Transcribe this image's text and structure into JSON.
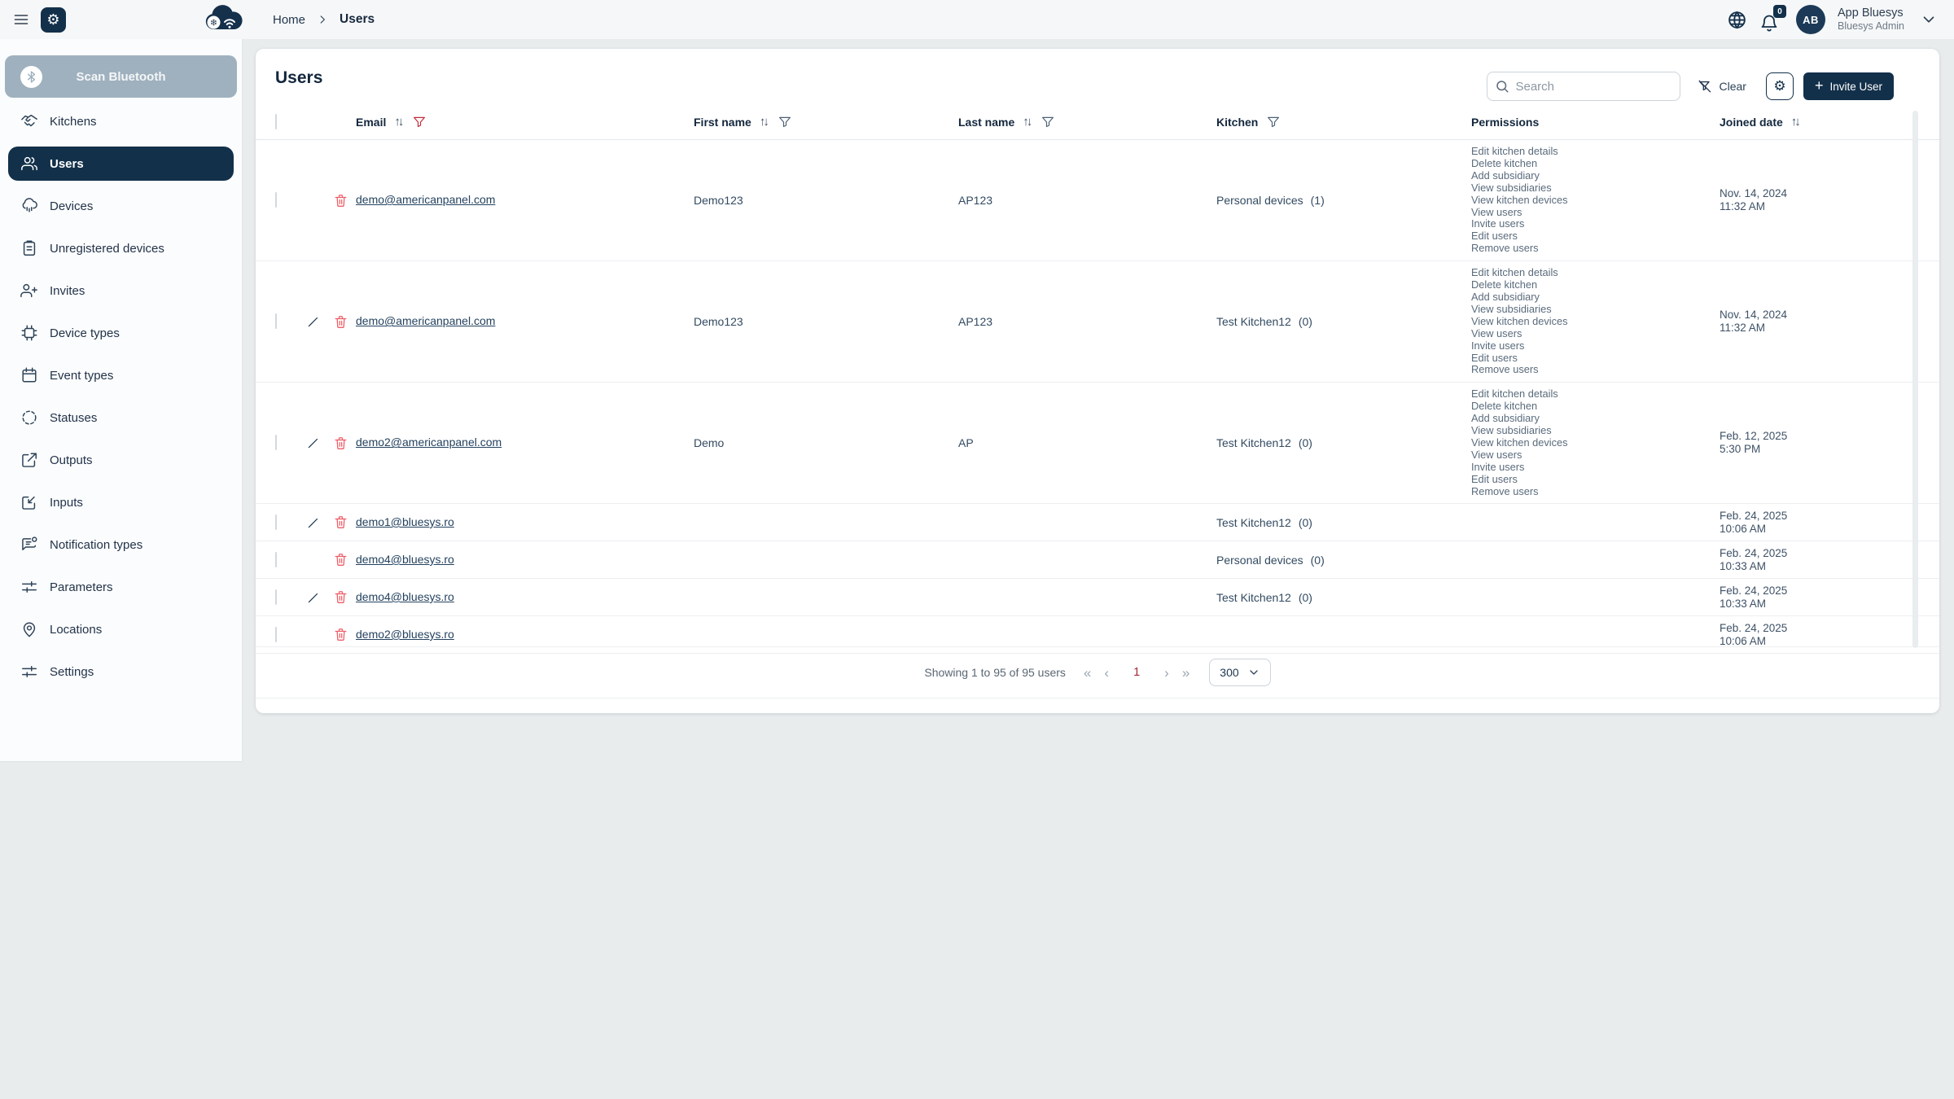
{
  "topbar": {
    "breadcrumb": {
      "home": "Home",
      "current": "Users"
    },
    "notification_count": "0",
    "user": {
      "initials": "AB",
      "name": "App Bluesys",
      "role": "Bluesys Admin"
    }
  },
  "sidebar": {
    "scan_button_label": "Scan Bluetooth",
    "items": [
      {
        "id": "kitchens",
        "label": "Kitchens",
        "icon": "handshake-icon",
        "active": false
      },
      {
        "id": "users",
        "label": "Users",
        "icon": "users-group-icon",
        "active": true
      },
      {
        "id": "devices",
        "label": "Devices",
        "icon": "cloud-device-icon",
        "active": false
      },
      {
        "id": "unregistered-devices",
        "label": "Unregistered devices",
        "icon": "clipboard-icon",
        "active": false
      },
      {
        "id": "invites",
        "label": "Invites",
        "icon": "user-plus-icon",
        "active": false
      },
      {
        "id": "device-types",
        "label": "Device types",
        "icon": "cpu-icon",
        "active": false
      },
      {
        "id": "event-types",
        "label": "Event types",
        "icon": "calendar-icon",
        "active": false
      },
      {
        "id": "statuses",
        "label": "Statuses",
        "icon": "dashed-circle-icon",
        "active": false
      },
      {
        "id": "outputs",
        "label": "Outputs",
        "icon": "arrow-out-box-icon",
        "active": false
      },
      {
        "id": "inputs",
        "label": "Inputs",
        "icon": "arrow-in-box-icon",
        "active": false
      },
      {
        "id": "notification-types",
        "label": "Notification types",
        "icon": "message-bubble-icon",
        "active": false
      },
      {
        "id": "parameters",
        "label": "Parameters",
        "icon": "sliders-icon",
        "active": false
      },
      {
        "id": "locations",
        "label": "Locations",
        "icon": "map-pin-icon",
        "active": false
      },
      {
        "id": "settings",
        "label": "Settings",
        "icon": "sliders-icon",
        "active": false
      }
    ]
  },
  "page": {
    "title": "Users",
    "search_placeholder": "Search",
    "clear_label": "Clear",
    "invite_label": "Invite User",
    "columns": [
      {
        "label": "Email",
        "sortable": true,
        "filterable": true,
        "filter_active": true
      },
      {
        "label": "First name",
        "sortable": true,
        "filterable": true,
        "filter_active": false
      },
      {
        "label": "Last name",
        "sortable": true,
        "filterable": true,
        "filter_active": false
      },
      {
        "label": "Kitchen",
        "sortable": false,
        "filterable": true,
        "filter_active": false
      },
      {
        "label": "Permissions",
        "sortable": false,
        "filterable": false,
        "filter_active": false
      },
      {
        "label": "Joined date",
        "sortable": true,
        "filterable": false,
        "filter_active": false
      }
    ],
    "rows": [
      {
        "email": "demo@americanpanel.com",
        "first_name": "Demo123",
        "last_name": "AP123",
        "kitchen": "Personal devices",
        "kitchen_count": "(1)",
        "editable": false,
        "permissions": [
          "Edit kitchen details",
          "Delete kitchen",
          "Add subsidiary",
          "View subsidiaries",
          "View kitchen devices",
          "View users",
          "Invite users",
          "Edit users",
          "Remove users"
        ],
        "joined_date": "Nov. 14, 2024",
        "joined_time": "11:32 AM"
      },
      {
        "email": "demo@americanpanel.com",
        "first_name": "Demo123",
        "last_name": "AP123",
        "kitchen": "Test Kitchen12",
        "kitchen_count": "(0)",
        "editable": true,
        "permissions": [
          "Edit kitchen details",
          "Delete kitchen",
          "Add subsidiary",
          "View subsidiaries",
          "View kitchen devices",
          "View users",
          "Invite users",
          "Edit users",
          "Remove users"
        ],
        "joined_date": "Nov. 14, 2024",
        "joined_time": "11:32 AM"
      },
      {
        "email": "demo2@americanpanel.com",
        "first_name": "Demo",
        "last_name": "AP",
        "kitchen": "Test Kitchen12",
        "kitchen_count": "(0)",
        "editable": true,
        "permissions": [
          "Edit kitchen details",
          "Delete kitchen",
          "Add subsidiary",
          "View subsidiaries",
          "View kitchen devices",
          "View users",
          "Invite users",
          "Edit users",
          "Remove users"
        ],
        "joined_date": "Feb. 12, 2025",
        "joined_time": "5:30 PM"
      },
      {
        "email": "demo1@bluesys.ro",
        "first_name": "",
        "last_name": "",
        "kitchen": "Test Kitchen12",
        "kitchen_count": "(0)",
        "editable": true,
        "permissions": [],
        "joined_date": "Feb. 24, 2025",
        "joined_time": "10:06 AM"
      },
      {
        "email": "demo4@bluesys.ro",
        "first_name": "",
        "last_name": "",
        "kitchen": "Personal devices",
        "kitchen_count": "(0)",
        "editable": false,
        "permissions": [],
        "joined_date": "Feb. 24, 2025",
        "joined_time": "10:33 AM"
      },
      {
        "email": "demo4@bluesys.ro",
        "first_name": "",
        "last_name": "",
        "kitchen": "Test Kitchen12",
        "kitchen_count": "(0)",
        "editable": true,
        "permissions": [],
        "joined_date": "Feb. 24, 2025",
        "joined_time": "10:33 AM"
      },
      {
        "email": "demo2@bluesys.ro",
        "first_name": "",
        "last_name": "",
        "kitchen": "",
        "kitchen_count": "",
        "editable": false,
        "permissions": [],
        "joined_date": "Feb. 24, 2025",
        "joined_time": "10:06 AM"
      }
    ],
    "pagination": {
      "summary": "Showing 1 to 95 of 95 users",
      "first": "«",
      "prev": "‹",
      "page": "1",
      "next": "›",
      "last": "»",
      "page_size": "300"
    }
  },
  "colors": {
    "navy": "#13304a",
    "active_pill": "#12304a",
    "trash_red": "#ee5d66",
    "filter_red": "#c22b3a",
    "page_number_red": "#a52a34",
    "scan_button_gray": "#9fb1be"
  }
}
